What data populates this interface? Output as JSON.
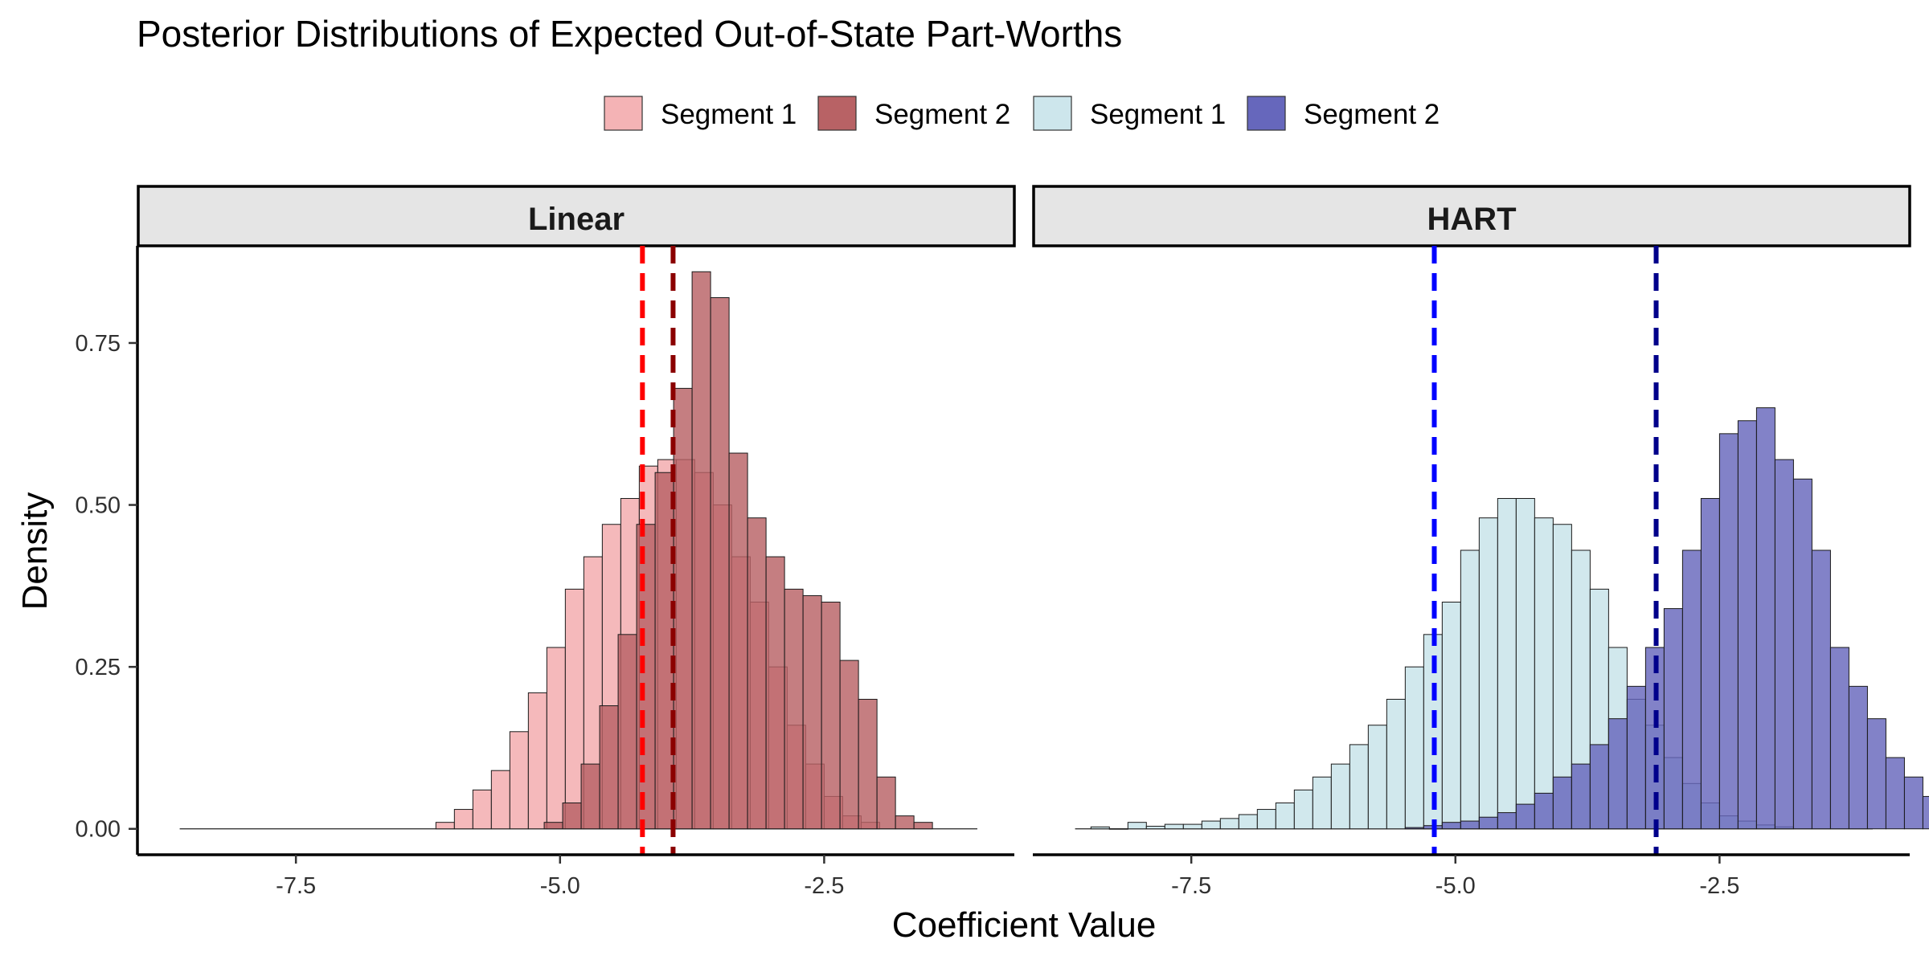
{
  "colors": {
    "linear_seg1": "#f4b3b5",
    "linear_seg2": "#b86265",
    "hart_seg1": "#cde6ec",
    "hart_seg2": "#6667bc",
    "mean_linear_seg1": "#ff0000",
    "mean_linear_seg2": "#8b0000",
    "mean_hart_seg1": "#0000ff",
    "mean_hart_seg2": "#00008b",
    "strip_fill": "#e5e5e5"
  },
  "chart_data": {
    "type": "histogram",
    "title": "Posterior Distributions of Expected Out-of-State Part-Worths",
    "xlabel": "Coefficient Value",
    "ylabel": "Density",
    "xlim": [
      -9.0,
      -0.7
    ],
    "ylim": [
      -0.04,
      0.9
    ],
    "x_ticks": [
      -7.5,
      -5.0,
      -2.5
    ],
    "x_tick_labels": [
      "-7.5",
      "-5.0",
      "-2.5"
    ],
    "y_ticks": [
      0.0,
      0.25,
      0.5,
      0.75
    ],
    "y_tick_labels": [
      "0.00",
      "0.25",
      "0.50",
      "0.75"
    ],
    "bin_width": 0.175,
    "grid": false,
    "legend_position": "top",
    "legend": [
      {
        "label": "Segment 1",
        "color_key": "linear_seg1"
      },
      {
        "label": "Segment 2",
        "color_key": "linear_seg2"
      },
      {
        "label": "Segment 1",
        "color_key": "hart_seg1"
      },
      {
        "label": "Segment 2",
        "color_key": "hart_seg2"
      }
    ],
    "panels": [
      {
        "label": "Linear",
        "series": [
          {
            "name": "Segment 1",
            "color_key": "linear_seg1",
            "x_start": -6.175,
            "values": [
              0.01,
              0.03,
              0.06,
              0.09,
              0.15,
              0.21,
              0.28,
              0.37,
              0.42,
              0.47,
              0.51,
              0.56,
              0.57,
              0.57,
              0.55,
              0.5,
              0.42,
              0.35,
              0.25,
              0.16,
              0.1,
              0.05,
              0.02,
              0.01
            ]
          },
          {
            "name": "Segment 2",
            "color_key": "linear_seg2",
            "x_start": -5.15,
            "values": [
              0.01,
              0.04,
              0.1,
              0.19,
              0.3,
              0.47,
              0.55,
              0.68,
              0.86,
              0.82,
              0.58,
              0.48,
              0.42,
              0.37,
              0.36,
              0.35,
              0.26,
              0.2,
              0.08,
              0.02,
              0.01
            ]
          }
        ],
        "means": [
          {
            "name": "Segment 1",
            "x": -4.22,
            "color_key": "mean_linear_seg1"
          },
          {
            "name": "Segment 2",
            "x": -3.93,
            "color_key": "mean_linear_seg2"
          }
        ],
        "baseline_range": [
          -8.6,
          -1.05
        ]
      },
      {
        "label": "HART",
        "series": [
          {
            "name": "Segment 1",
            "color_key": "hart_seg1",
            "x_start": -8.45,
            "values": [
              0.003,
              0.0,
              0.01,
              0.004,
              0.007,
              0.007,
              0.012,
              0.016,
              0.022,
              0.03,
              0.04,
              0.06,
              0.08,
              0.1,
              0.13,
              0.16,
              0.2,
              0.25,
              0.3,
              0.35,
              0.43,
              0.48,
              0.51,
              0.51,
              0.48,
              0.47,
              0.43,
              0.37,
              0.28,
              0.2,
              0.16,
              0.11,
              0.07,
              0.04,
              0.02,
              0.012,
              0.006,
              0.003
            ]
          },
          {
            "name": "Segment 2",
            "color_key": "hart_seg2",
            "x_start": -5.475,
            "values": [
              0.002,
              0.005,
              0.01,
              0.012,
              0.018,
              0.025,
              0.038,
              0.055,
              0.08,
              0.1,
              0.13,
              0.17,
              0.22,
              0.28,
              0.34,
              0.43,
              0.51,
              0.61,
              0.63,
              0.65,
              0.57,
              0.54,
              0.43,
              0.28,
              0.22,
              0.17,
              0.11,
              0.08,
              0.05,
              0.03,
              0.014,
              0.008,
              0.004
            ]
          }
        ],
        "means": [
          {
            "name": "Segment 1",
            "x": -5.2,
            "color_key": "mean_hart_seg1"
          },
          {
            "name": "Segment 2",
            "x": -3.1,
            "color_key": "mean_hart_seg2"
          }
        ],
        "baseline_range": [
          -8.6,
          -1.05
        ]
      }
    ]
  }
}
